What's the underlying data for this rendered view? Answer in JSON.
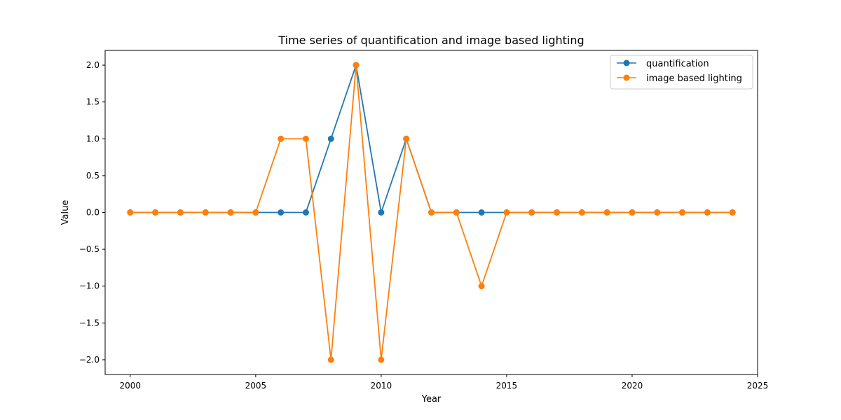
{
  "chart_data": {
    "type": "line",
    "title": "Time series of quantification and image based lighting",
    "xlabel": "Year",
    "ylabel": "Value",
    "xlim": [
      1999,
      2025
    ],
    "ylim": [
      -2.2,
      2.2
    ],
    "x_ticks": [
      "2000",
      "2005",
      "2010",
      "2015",
      "2020",
      "2025"
    ],
    "y_ticks": [
      "−2.0",
      "−1.5",
      "−1.0",
      "−0.5",
      "0.0",
      "0.5",
      "1.0",
      "1.5",
      "2.0"
    ],
    "grid": false,
    "legend_position": "top-right",
    "x": [
      2000,
      2001,
      2002,
      2003,
      2004,
      2005,
      2006,
      2007,
      2008,
      2009,
      2010,
      2011,
      2012,
      2013,
      2014,
      2015,
      2016,
      2017,
      2018,
      2019,
      2020,
      2021,
      2022,
      2023,
      2024
    ],
    "series": [
      {
        "name": "quantification",
        "color": "#1f77b4",
        "marker": "circle",
        "values": [
          0,
          0,
          0,
          0,
          0,
          0,
          0,
          0,
          1,
          2,
          0,
          1,
          0,
          0,
          0,
          0,
          0,
          0,
          0,
          0,
          0,
          0,
          0,
          0,
          0
        ]
      },
      {
        "name": "image based lighting",
        "color": "#ff7f0e",
        "marker": "circle",
        "values": [
          0,
          0,
          0,
          0,
          0,
          0,
          1,
          1,
          -2,
          2,
          -2,
          1,
          0,
          0,
          -1,
          0,
          0,
          0,
          0,
          0,
          0,
          0,
          0,
          0,
          0
        ]
      }
    ]
  }
}
